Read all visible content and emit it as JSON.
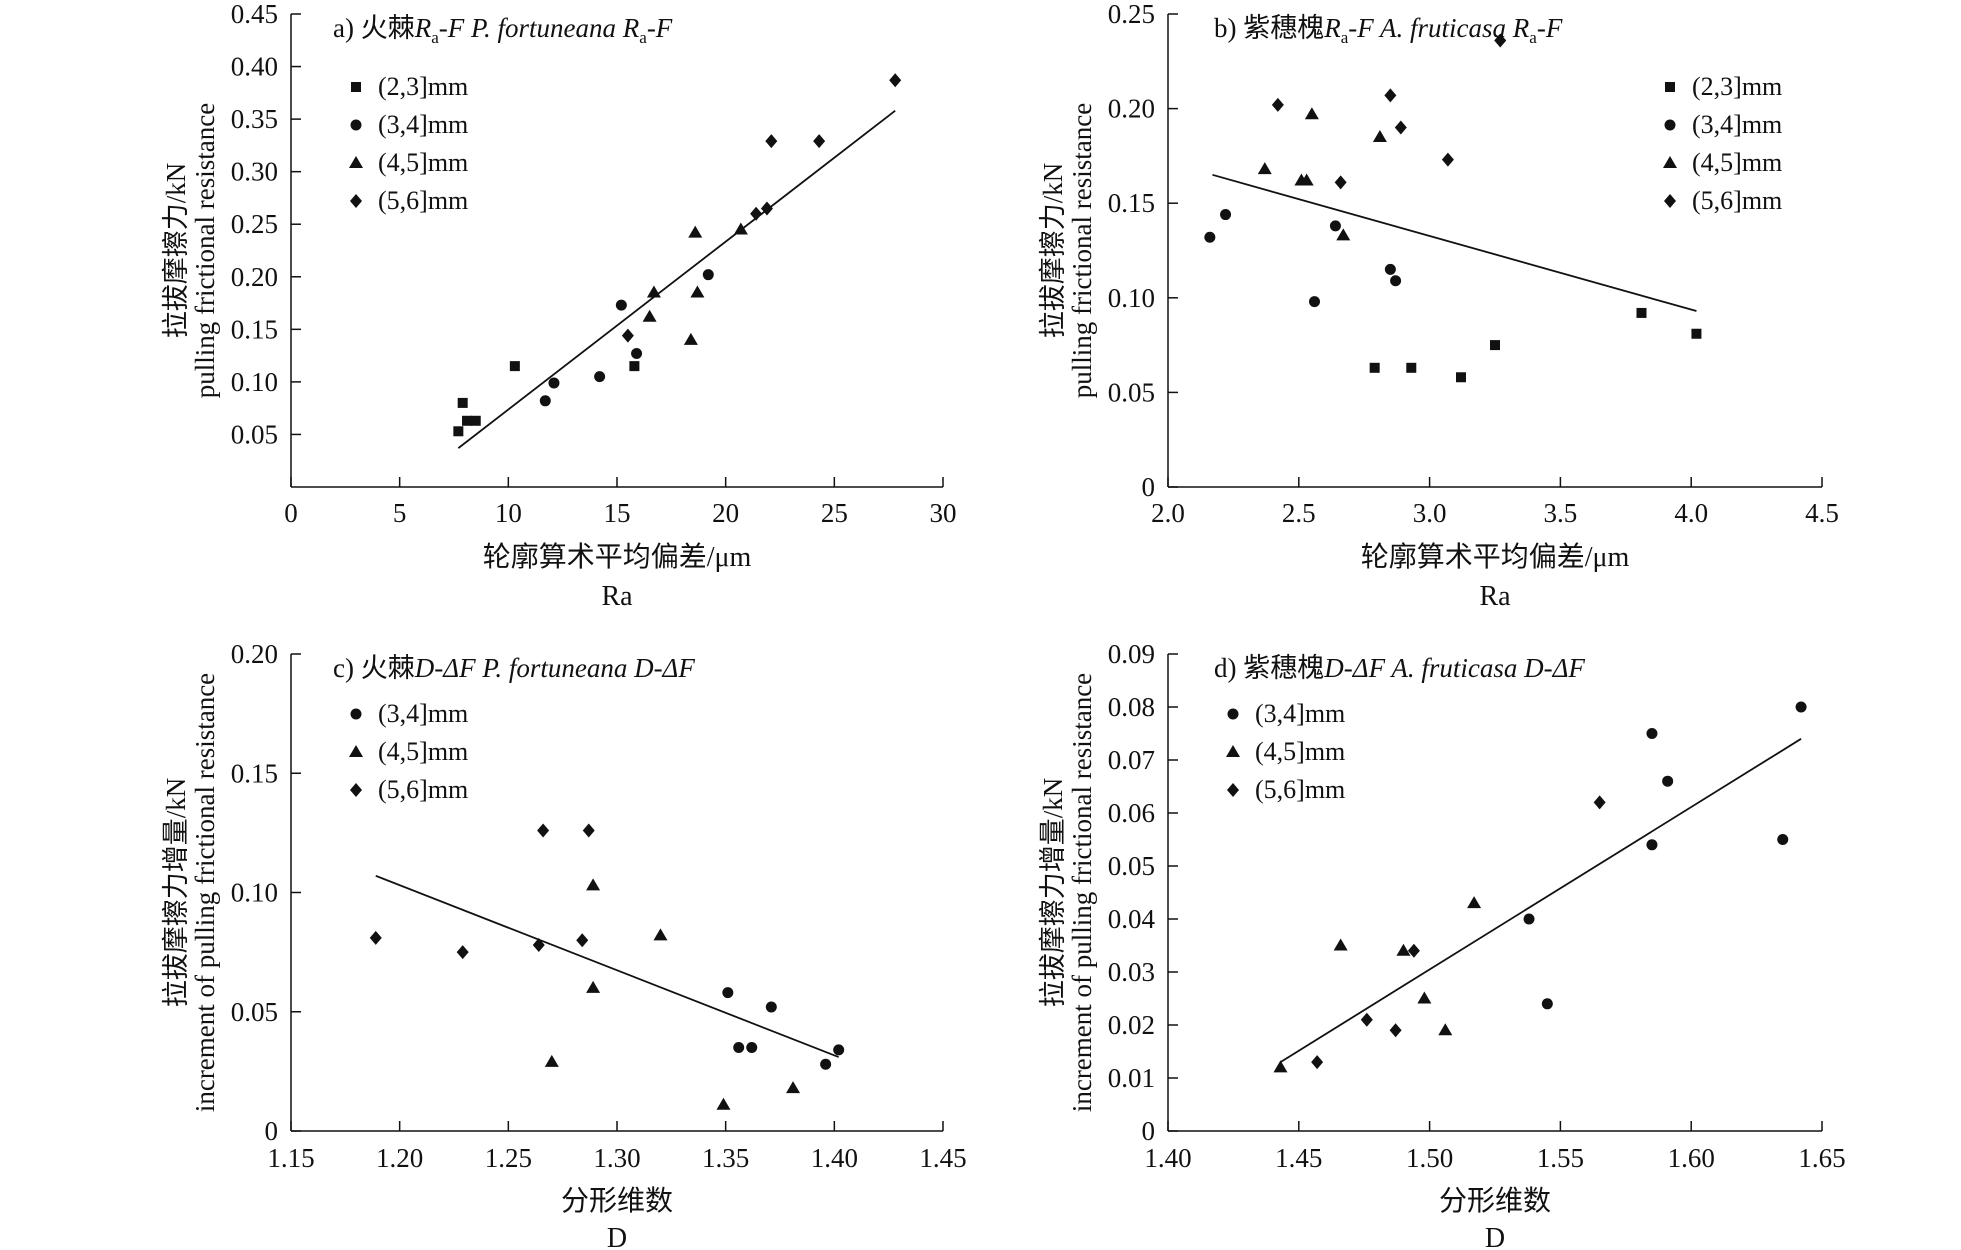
{
  "chart_data": [
    {
      "id": "a",
      "type": "scatter",
      "title": "a) 火棘R<sub>a</sub>-F P. fortuneana R<sub>a</sub>-F",
      "title_parts": [
        {
          "t": "a) 火棘",
          "style": "normal"
        },
        {
          "t": "R",
          "style": "italic"
        },
        {
          "t": "a",
          "style": "sub"
        },
        {
          "t": "-F P. fortuneana R",
          "style": "italic"
        },
        {
          "t": "a",
          "style": "sub"
        },
        {
          "t": "-F",
          "style": "italic"
        }
      ],
      "xlabel": "轮廓算术平均偏差/μm",
      "xlabel2": "Ra",
      "ylabel": "拉拔摩擦力/kN",
      "ylabel2": "pulling frictional resistance",
      "xlim": [
        0,
        30
      ],
      "ylim": [
        0,
        0.45
      ],
      "xticks": [
        0,
        5,
        10,
        15,
        20,
        25,
        30
      ],
      "xtick_labels": [
        "0",
        "5",
        "10",
        "15",
        "20",
        "25",
        "30"
      ],
      "yticks": [
        0.05,
        0.1,
        0.15,
        0.2,
        0.25,
        0.3,
        0.35,
        0.4,
        0.45
      ],
      "ytick_labels": [
        "0.05",
        "0.10",
        "0.15",
        "0.20",
        "0.25",
        "0.30",
        "0.35",
        "0.40",
        "0.45"
      ],
      "legend_position": "top-left",
      "series": [
        {
          "name": "(2,3]mm",
          "marker": "square",
          "points": [
            [
              7.7,
              0.053
            ],
            [
              7.9,
              0.08
            ],
            [
              8.1,
              0.063
            ],
            [
              8.5,
              0.063
            ],
            [
              10.3,
              0.115
            ],
            [
              15.8,
              0.115
            ]
          ]
        },
        {
          "name": "(3,4]mm",
          "marker": "circle",
          "points": [
            [
              11.7,
              0.082
            ],
            [
              12.1,
              0.099
            ],
            [
              14.2,
              0.105
            ],
            [
              15.2,
              0.173
            ],
            [
              15.9,
              0.127
            ],
            [
              19.2,
              0.202
            ]
          ]
        },
        {
          "name": "(4,5]mm",
          "marker": "triangle",
          "points": [
            [
              16.5,
              0.162
            ],
            [
              16.7,
              0.185
            ],
            [
              18.4,
              0.14
            ],
            [
              18.6,
              0.242
            ],
            [
              18.7,
              0.185
            ],
            [
              20.7,
              0.245
            ]
          ]
        },
        {
          "name": "(5,6]mm",
          "marker": "diamond",
          "points": [
            [
              15.5,
              0.144
            ],
            [
              21.4,
              0.26
            ],
            [
              21.9,
              0.265
            ],
            [
              22.1,
              0.329
            ],
            [
              24.3,
              0.329
            ],
            [
              27.8,
              0.387
            ]
          ]
        }
      ],
      "fit_line": [
        [
          7.7,
          0.037
        ],
        [
          27.8,
          0.358
        ]
      ]
    },
    {
      "id": "b",
      "type": "scatter",
      "title": "b) 紫穗槐R<sub>a</sub>-F A. fruticasa R<sub>a</sub>-F",
      "title_parts": [
        {
          "t": "b) 紫穗槐",
          "style": "normal"
        },
        {
          "t": "R",
          "style": "italic"
        },
        {
          "t": "a",
          "style": "sub"
        },
        {
          "t": "-F A. fruticasa R",
          "style": "italic"
        },
        {
          "t": "a",
          "style": "sub"
        },
        {
          "t": "-F",
          "style": "italic"
        }
      ],
      "xlabel": "轮廓算术平均偏差/μm",
      "xlabel2": "Ra",
      "ylabel": "拉拔摩擦力/kN",
      "ylabel2": "pulling frictional resistance",
      "xlim": [
        2.0,
        4.5
      ],
      "ylim": [
        0,
        0.25
      ],
      "xticks": [
        2.0,
        2.5,
        3.0,
        3.5,
        4.0,
        4.5
      ],
      "xtick_labels": [
        "2.0",
        "2.5",
        "3.0",
        "3.5",
        "4.0",
        "4.5"
      ],
      "yticks": [
        0,
        0.05,
        0.1,
        0.15,
        0.2,
        0.25
      ],
      "ytick_labels": [
        "0",
        "0.05",
        "0.10",
        "0.15",
        "0.20",
        "0.25"
      ],
      "legend_position": "top-right",
      "series": [
        {
          "name": "(2,3]mm",
          "marker": "square",
          "points": [
            [
              2.79,
              0.063
            ],
            [
              2.93,
              0.063
            ],
            [
              3.12,
              0.058
            ],
            [
              3.25,
              0.075
            ],
            [
              3.81,
              0.092
            ],
            [
              4.02,
              0.081
            ]
          ]
        },
        {
          "name": "(3,4]mm",
          "marker": "circle",
          "points": [
            [
              2.16,
              0.132
            ],
            [
              2.22,
              0.144
            ],
            [
              2.56,
              0.098
            ],
            [
              2.64,
              0.138
            ],
            [
              2.85,
              0.115
            ],
            [
              2.87,
              0.109
            ]
          ]
        },
        {
          "name": "(4,5]mm",
          "marker": "triangle",
          "points": [
            [
              2.37,
              0.168
            ],
            [
              2.51,
              0.162
            ],
            [
              2.53,
              0.162
            ],
            [
              2.55,
              0.197
            ],
            [
              2.67,
              0.133
            ],
            [
              2.81,
              0.185
            ]
          ]
        },
        {
          "name": "(5,6]mm",
          "marker": "diamond",
          "points": [
            [
              2.42,
              0.202
            ],
            [
              2.66,
              0.161
            ],
            [
              2.85,
              0.207
            ],
            [
              2.89,
              0.19
            ],
            [
              3.07,
              0.173
            ],
            [
              3.27,
              0.236
            ]
          ]
        }
      ],
      "fit_line": [
        [
          2.17,
          0.165
        ],
        [
          4.02,
          0.093
        ]
      ]
    },
    {
      "id": "c",
      "type": "scatter",
      "title": "c) 火棘D-ΔF P. fortuneana D-ΔF",
      "title_parts": [
        {
          "t": "c) 火棘",
          "style": "normal"
        },
        {
          "t": "D-ΔF P. fortuneana D-ΔF",
          "style": "italic"
        }
      ],
      "xlabel": "分形维数",
      "xlabel2": "D",
      "ylabel": "拉拔摩擦力增量/kN",
      "ylabel2": "increment of pulling frictional resistance",
      "xlim": [
        1.15,
        1.45
      ],
      "ylim": [
        0,
        0.2
      ],
      "xticks": [
        1.15,
        1.2,
        1.25,
        1.3,
        1.35,
        1.4,
        1.45
      ],
      "xtick_labels": [
        "1.15",
        "1.20",
        "1.25",
        "1.30",
        "1.35",
        "1.40",
        "1.45"
      ],
      "yticks": [
        0,
        0.05,
        0.1,
        0.15,
        0.2
      ],
      "ytick_labels": [
        "0",
        "0.05",
        "0.10",
        "0.15",
        "0.20"
      ],
      "legend_position": "top-left",
      "series": [
        {
          "name": "(3,4]mm",
          "marker": "circle",
          "points": [
            [
              1.351,
              0.058
            ],
            [
              1.356,
              0.035
            ],
            [
              1.362,
              0.035
            ],
            [
              1.371,
              0.052
            ],
            [
              1.396,
              0.028
            ],
            [
              1.402,
              0.034
            ]
          ]
        },
        {
          "name": "(4,5]mm",
          "marker": "triangle",
          "points": [
            [
              1.27,
              0.029
            ],
            [
              1.289,
              0.103
            ],
            [
              1.289,
              0.06
            ],
            [
              1.32,
              0.082
            ],
            [
              1.349,
              0.011
            ],
            [
              1.381,
              0.018
            ]
          ]
        },
        {
          "name": "(5,6]mm",
          "marker": "diamond",
          "points": [
            [
              1.189,
              0.081
            ],
            [
              1.229,
              0.075
            ],
            [
              1.264,
              0.078
            ],
            [
              1.266,
              0.126
            ],
            [
              1.284,
              0.08
            ],
            [
              1.287,
              0.126
            ]
          ]
        }
      ],
      "fit_line": [
        [
          1.189,
          0.107
        ],
        [
          1.402,
          0.031
        ]
      ]
    },
    {
      "id": "d",
      "type": "scatter",
      "title": "d) 紫穗槐D-ΔF A. fruticasa D-ΔF",
      "title_parts": [
        {
          "t": "d) 紫穗槐",
          "style": "normal"
        },
        {
          "t": "D-ΔF A. fruticasa D-ΔF",
          "style": "italic"
        }
      ],
      "xlabel": "分形维数",
      "xlabel2": "D",
      "ylabel": "拉拔摩擦力增量/kN",
      "ylabel2": "increment of pulling frictional resistance",
      "xlim": [
        1.4,
        1.65
      ],
      "ylim": [
        0,
        0.09
      ],
      "xticks": [
        1.4,
        1.45,
        1.5,
        1.55,
        1.6,
        1.65
      ],
      "xtick_labels": [
        "1.40",
        "1.45",
        "1.50",
        "1.55",
        "1.60",
        "1.65"
      ],
      "yticks": [
        0,
        0.01,
        0.02,
        0.03,
        0.04,
        0.05,
        0.06,
        0.07,
        0.08,
        0.09
      ],
      "ytick_labels": [
        "0",
        "0.01",
        "0.02",
        "0.03",
        "0.04",
        "0.05",
        "0.06",
        "0.07",
        "0.08",
        "0.09"
      ],
      "legend_position": "top-left",
      "series": [
        {
          "name": "(3,4]mm",
          "marker": "circle",
          "points": [
            [
              1.538,
              0.04
            ],
            [
              1.545,
              0.024
            ],
            [
              1.585,
              0.075
            ],
            [
              1.585,
              0.054
            ],
            [
              1.591,
              0.066
            ],
            [
              1.635,
              0.055
            ],
            [
              1.642,
              0.08
            ]
          ]
        },
        {
          "name": "(4,5]mm",
          "marker": "triangle",
          "points": [
            [
              1.443,
              0.012
            ],
            [
              1.466,
              0.035
            ],
            [
              1.49,
              0.034
            ],
            [
              1.498,
              0.025
            ],
            [
              1.506,
              0.019
            ],
            [
              1.517,
              0.043
            ]
          ]
        },
        {
          "name": "(5,6]mm",
          "marker": "diamond",
          "points": [
            [
              1.457,
              0.013
            ],
            [
              1.476,
              0.021
            ],
            [
              1.487,
              0.019
            ],
            [
              1.494,
              0.034
            ],
            [
              1.565,
              0.062
            ]
          ]
        }
      ],
      "fit_line": [
        [
          1.443,
          0.013
        ],
        [
          1.642,
          0.074
        ]
      ]
    }
  ]
}
